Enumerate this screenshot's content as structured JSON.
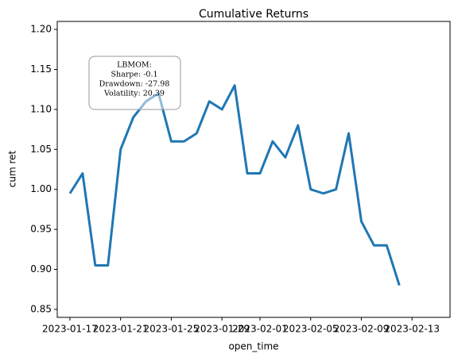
{
  "chart_data": {
    "type": "line",
    "title": "Cumulative Returns",
    "x_label": "open_time",
    "y_label": "cum ret",
    "x": [
      "2023-01-17",
      "2023-01-18",
      "2023-01-19",
      "2023-01-20",
      "2023-01-21",
      "2023-01-22",
      "2023-01-23",
      "2023-01-24",
      "2023-01-25",
      "2023-01-26",
      "2023-01-27",
      "2023-01-28",
      "2023-01-29",
      "2023-01-30",
      "2023-01-31",
      "2023-02-01",
      "2023-02-02",
      "2023-02-03",
      "2023-02-04",
      "2023-02-05",
      "2023-02-06",
      "2023-02-07",
      "2023-02-08",
      "2023-02-09",
      "2023-02-10",
      "2023-02-11",
      "2023-02-12"
    ],
    "series": [
      {
        "name": "cum ret",
        "color": "#1f77b4",
        "values": [
          0.995,
          1.02,
          0.905,
          0.905,
          1.05,
          1.09,
          1.11,
          1.12,
          1.06,
          1.06,
          1.07,
          1.11,
          1.1,
          1.13,
          1.02,
          1.02,
          1.06,
          1.04,
          1.08,
          1.0,
          0.995,
          1.0,
          1.07,
          0.96,
          0.93,
          0.93,
          0.88
        ]
      }
    ],
    "xlim": [
      "2023-01-16",
      "2023-02-16"
    ],
    "xticks": [
      "2023-01-17",
      "2023-01-21",
      "2023-01-25",
      "2023-01-29",
      "2023-02-01",
      "2023-02-05",
      "2023-02-09",
      "2023-02-13"
    ],
    "ylim": [
      0.84,
      1.21
    ],
    "yticks": [
      {
        "value": 0.85,
        "label": "0.85"
      },
      {
        "value": 0.9,
        "label": "0.90"
      },
      {
        "value": 0.95,
        "label": "0.95"
      },
      {
        "value": 1.0,
        "label": "1.00"
      },
      {
        "value": 1.05,
        "label": "1.05"
      },
      {
        "value": 1.1,
        "label": "1.10"
      },
      {
        "value": 1.15,
        "label": "1.15"
      },
      {
        "value": 1.2,
        "label": "1.20"
      }
    ],
    "grid": false,
    "annotation": [
      "LBMOM:",
      "Sharpe: -0.1",
      "Drawdown: -27.98",
      "Volatility: 20.39"
    ]
  }
}
